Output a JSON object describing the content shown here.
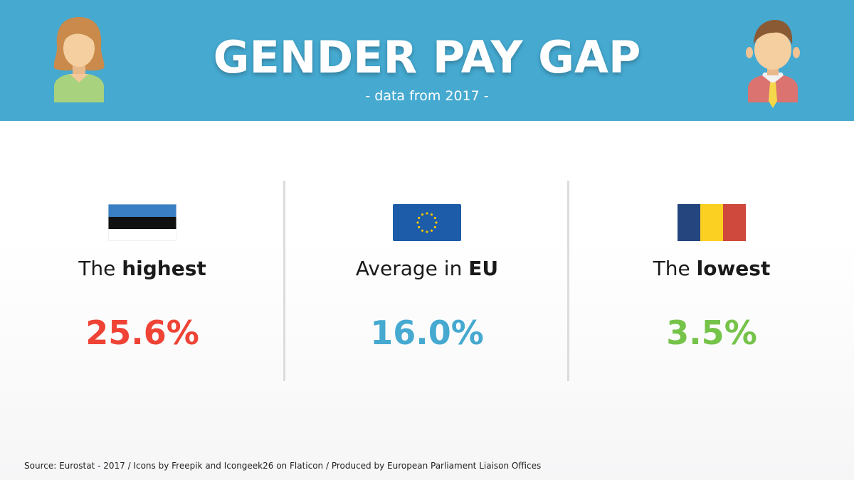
{
  "header": {
    "title": "GENDER PAY GAP",
    "subtitle": "- data from 2017 -",
    "background_color": "#45a9d0"
  },
  "columns": [
    {
      "label_prefix": "The ",
      "label_bold": "highest",
      "value": "25.6%",
      "value_color": "#ef4336",
      "flag_icon": "estonia-flag-icon"
    },
    {
      "label_prefix": "Average in ",
      "label_bold": "EU",
      "value": "16.0%",
      "value_color": "#45a9d0",
      "flag_icon": "eu-flag-icon"
    },
    {
      "label_prefix": "The ",
      "label_bold": "lowest",
      "value": "3.5%",
      "value_color": "#76c34a",
      "flag_icon": "romania-flag-icon"
    }
  ],
  "footer": {
    "source": "Source: Eurostat - 2017 / Icons by Freepik and Icongeek26 on Flaticon / Produced by European Parliament Liaison Offices"
  }
}
